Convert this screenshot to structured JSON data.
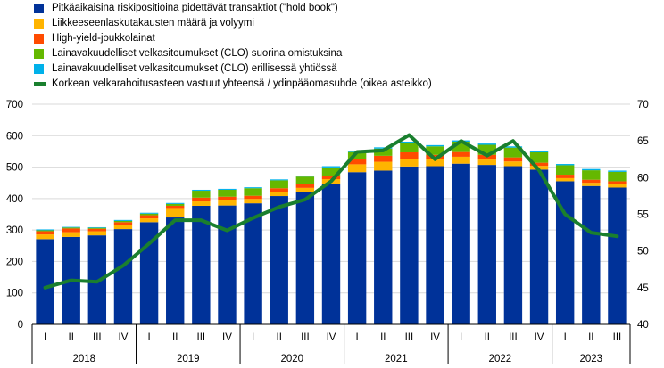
{
  "chart_data": {
    "type": "bar",
    "stacked": true,
    "legend_position": "top-left",
    "grid": true,
    "categories": [
      "I",
      "II",
      "III",
      "IV",
      "I",
      "II",
      "III",
      "IV",
      "I",
      "II",
      "III",
      "IV",
      "I",
      "II",
      "III",
      "IV",
      "I",
      "II",
      "III",
      "IV",
      "I",
      "II",
      "III"
    ],
    "year_groups": [
      {
        "label": "2018",
        "count": 4
      },
      {
        "label": "2019",
        "count": 4
      },
      {
        "label": "2020",
        "count": 4
      },
      {
        "label": "2021",
        "count": 4
      },
      {
        "label": "2022",
        "count": 4
      },
      {
        "label": "2023",
        "count": 3
      }
    ],
    "y_left": {
      "min": 0,
      "max": 700,
      "step": 100
    },
    "y_right": {
      "min": 40,
      "max": 70,
      "step": 5
    },
    "series": [
      {
        "name": "Pitkäaikaisina riskipositioina pidettävät transaktiot (\"hold book\")",
        "color": "#003299",
        "type": "bar",
        "values": [
          271,
          278,
          283,
          303,
          325,
          340,
          377,
          378,
          385,
          408,
          422,
          447,
          484,
          489,
          502,
          503,
          511,
          507,
          503,
          492,
          455,
          440,
          435
        ]
      },
      {
        "name": "Liikkeeseenlaskutakausten määrä ja volyymi",
        "color": "#ffb400",
        "type": "bar",
        "values": [
          15,
          15,
          13,
          12,
          12,
          30,
          14,
          18,
          14,
          14,
          12,
          15,
          25,
          28,
          25,
          22,
          22,
          17,
          15,
          12,
          10,
          10,
          10
        ]
      },
      {
        "name": "High-yield-joukkolainat",
        "color": "#ff4b00",
        "type": "bar",
        "values": [
          10,
          12,
          8,
          10,
          10,
          7,
          12,
          10,
          10,
          11,
          13,
          11,
          17,
          19,
          20,
          14,
          15,
          15,
          13,
          10,
          11,
          10,
          10
        ]
      },
      {
        "name": "Lainavakuudelliset velkasitoumukset (CLO) suorina omistuksina",
        "color": "#65b800",
        "type": "bar",
        "values": [
          3,
          3,
          3,
          4,
          5,
          6,
          22,
          22,
          24,
          25,
          23,
          26,
          22,
          23,
          30,
          27,
          33,
          32,
          31,
          33,
          30,
          30,
          30
        ]
      },
      {
        "name": "Lainavakuudelliset velkasitoumukset (CLO) erillisessä yhtiössä",
        "color": "#00b1ea",
        "type": "bar",
        "values": [
          3,
          2,
          2,
          3,
          3,
          3,
          3,
          3,
          3,
          3,
          3,
          4,
          4,
          4,
          4,
          4,
          4,
          4,
          4,
          4,
          4,
          4,
          4
        ]
      },
      {
        "name": "Korkean velkarahoitusasteen vastuut yhteensä / ydinpääomasuhde (oikea asteikko)",
        "color": "#1a7f2e",
        "type": "line",
        "axis": "right",
        "values": [
          45.0,
          46.0,
          45.8,
          48.0,
          51.0,
          54.2,
          54.2,
          52.8,
          54.5,
          56.0,
          57.0,
          59.5,
          63.5,
          63.7,
          65.8,
          62.5,
          65.0,
          63.0,
          65.0,
          61.0,
          55.0,
          52.5,
          52.0
        ]
      }
    ]
  }
}
